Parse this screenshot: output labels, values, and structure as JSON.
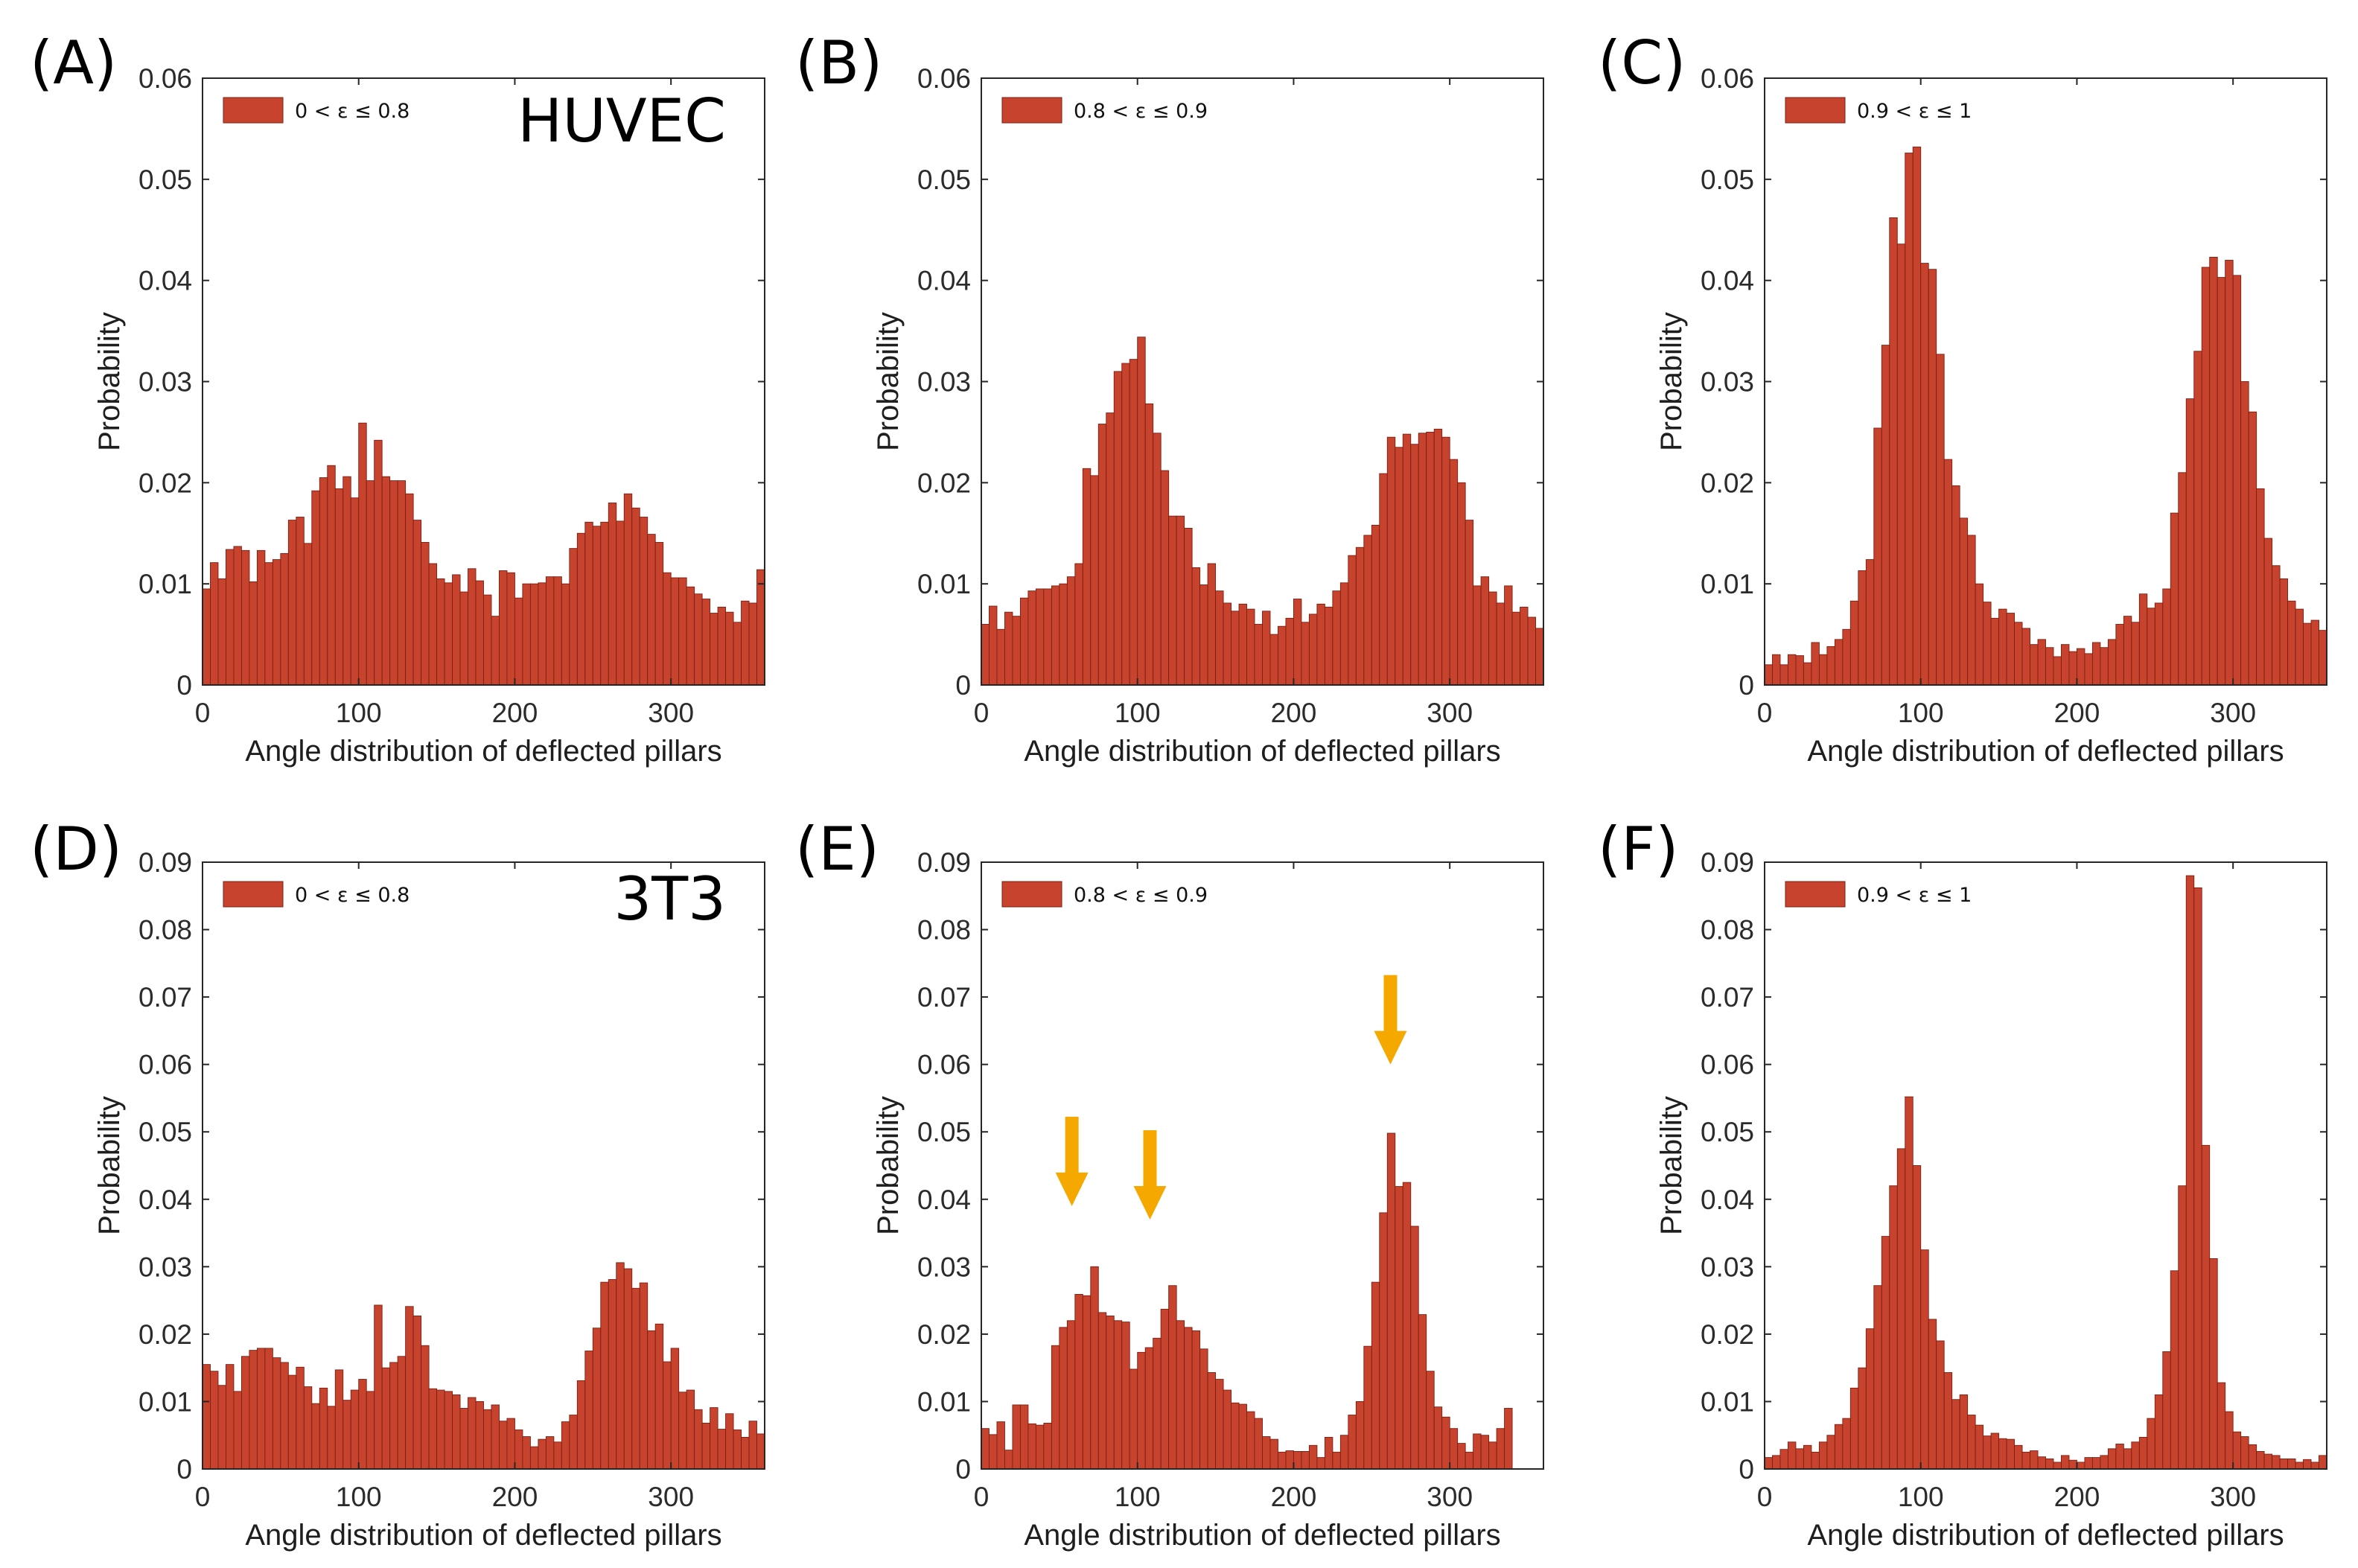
{
  "figure": {
    "bar_color": "#c8432e",
    "bar_edge_color": "#7a1f12",
    "arrow_color": "#f5a800",
    "axis_color": "#262626"
  },
  "chart_data": [
    {
      "panel": "(A)",
      "cell_label": "HUVEC",
      "legend": "0 < ε ≤ 0.8",
      "type": "bar",
      "bin_width_deg": 5,
      "xlabel": "Angle distribution of deflected pillars",
      "ylabel": "Probability",
      "xlim": [
        0,
        360
      ],
      "xticks": [
        0,
        100,
        200,
        300
      ],
      "ylim": [
        0,
        0.06
      ],
      "yticks": [
        0,
        0.01,
        0.02,
        0.03,
        0.04,
        0.05,
        0.06
      ],
      "ytick_labels": [
        "0",
        "0.01",
        "0.02",
        "0.03",
        "0.04",
        "0.05",
        "0.06"
      ],
      "values": [
        0.0095,
        0.0121,
        0.0105,
        0.0134,
        0.0137,
        0.0133,
        0.0102,
        0.0133,
        0.0121,
        0.0124,
        0.013,
        0.0163,
        0.0166,
        0.014,
        0.0192,
        0.0205,
        0.0217,
        0.0194,
        0.0206,
        0.0185,
        0.0259,
        0.0202,
        0.0242,
        0.0206,
        0.0202,
        0.0202,
        0.0189,
        0.0163,
        0.0141,
        0.012,
        0.0105,
        0.0101,
        0.0109,
        0.0092,
        0.0115,
        0.0103,
        0.0089,
        0.0068,
        0.0113,
        0.0111,
        0.0086,
        0.01,
        0.01,
        0.0101,
        0.0107,
        0.0107,
        0.01,
        0.0135,
        0.015,
        0.0161,
        0.0157,
        0.0161,
        0.018,
        0.0162,
        0.0189,
        0.0175,
        0.0166,
        0.0149,
        0.0141,
        0.0111,
        0.0106,
        0.0106,
        0.0097,
        0.009,
        0.0085,
        0.0071,
        0.0077,
        0.0072,
        0.0062,
        0.0083,
        0.0081,
        0.0114
      ]
    },
    {
      "panel": "(B)",
      "cell_label": "",
      "legend": "0.8 < ε ≤ 0.9",
      "type": "bar",
      "bin_width_deg": 5,
      "xlabel": "Angle distribution of deflected pillars",
      "ylabel": "Probability",
      "xlim": [
        0,
        360
      ],
      "xticks": [
        0,
        100,
        200,
        300
      ],
      "ylim": [
        0,
        0.06
      ],
      "yticks": [
        0,
        0.01,
        0.02,
        0.03,
        0.04,
        0.05,
        0.06
      ],
      "ytick_labels": [
        "0",
        "0.01",
        "0.02",
        "0.03",
        "0.04",
        "0.05",
        "0.06"
      ],
      "values": [
        0.006,
        0.0078,
        0.0055,
        0.0072,
        0.0068,
        0.0086,
        0.0093,
        0.0095,
        0.0095,
        0.0098,
        0.01,
        0.0107,
        0.012,
        0.0214,
        0.0207,
        0.0258,
        0.0269,
        0.031,
        0.0318,
        0.0322,
        0.0344,
        0.0278,
        0.0249,
        0.0212,
        0.0167,
        0.0167,
        0.0155,
        0.0116,
        0.0099,
        0.012,
        0.0093,
        0.0081,
        0.0073,
        0.008,
        0.0075,
        0.006,
        0.0073,
        0.005,
        0.0058,
        0.0066,
        0.0085,
        0.0062,
        0.007,
        0.008,
        0.0077,
        0.0093,
        0.0101,
        0.0128,
        0.0136,
        0.0148,
        0.0158,
        0.0209,
        0.0245,
        0.0235,
        0.0248,
        0.0238,
        0.0249,
        0.025,
        0.0253,
        0.0245,
        0.0223,
        0.02,
        0.0163,
        0.0098,
        0.0107,
        0.0092,
        0.0081,
        0.0098,
        0.0072,
        0.0077,
        0.0067,
        0.0056
      ]
    },
    {
      "panel": "(C)",
      "cell_label": "",
      "legend": "0.9 < ε ≤ 1",
      "type": "bar",
      "bin_width_deg": 5,
      "xlabel": "Angle distribution of deflected pillars",
      "ylabel": "Probability",
      "xlim": [
        0,
        360
      ],
      "xticks": [
        0,
        100,
        200,
        300
      ],
      "ylim": [
        0,
        0.06
      ],
      "yticks": [
        0,
        0.01,
        0.02,
        0.03,
        0.04,
        0.05,
        0.06
      ],
      "ytick_labels": [
        "0",
        "0.01",
        "0.02",
        "0.03",
        "0.04",
        "0.05",
        "0.06"
      ],
      "values": [
        0.002,
        0.003,
        0.002,
        0.003,
        0.0029,
        0.0022,
        0.0042,
        0.003,
        0.0038,
        0.0045,
        0.0055,
        0.0083,
        0.0113,
        0.0124,
        0.0254,
        0.0336,
        0.0462,
        0.0436,
        0.0526,
        0.0532,
        0.0417,
        0.0411,
        0.0327,
        0.0223,
        0.0197,
        0.0165,
        0.0148,
        0.01,
        0.0082,
        0.0066,
        0.0075,
        0.0071,
        0.0062,
        0.0056,
        0.004,
        0.0045,
        0.0037,
        0.0028,
        0.004,
        0.0033,
        0.0036,
        0.0031,
        0.0042,
        0.0037,
        0.0045,
        0.006,
        0.0068,
        0.0062,
        0.009,
        0.0076,
        0.0081,
        0.0095,
        0.017,
        0.021,
        0.0283,
        0.033,
        0.0413,
        0.0423,
        0.0403,
        0.042,
        0.0405,
        0.03,
        0.027,
        0.0194,
        0.0145,
        0.0118,
        0.0105,
        0.0083,
        0.0075,
        0.0061,
        0.0064,
        0.0054,
        0.0065,
        0.0045,
        0.0053,
        0.004,
        0.0031
      ]
    },
    {
      "panel": "(D)",
      "cell_label": "3T3",
      "legend": "0 < ε ≤ 0.8",
      "type": "bar",
      "bin_width_deg": 5,
      "xlabel": "Angle distribution of deflected pillars",
      "ylabel": "Probability",
      "xlim": [
        0,
        360
      ],
      "xticks": [
        0,
        100,
        200,
        300
      ],
      "ylim": [
        0,
        0.09
      ],
      "yticks": [
        0,
        0.01,
        0.02,
        0.03,
        0.04,
        0.05,
        0.06,
        0.07,
        0.08,
        0.09
      ],
      "ytick_labels": [
        "0",
        "0.01",
        "0.02",
        "0.03",
        "0.04",
        "0.05",
        "0.06",
        "0.07",
        "0.08",
        "0.09"
      ],
      "values": [
        0.0155,
        0.0145,
        0.0124,
        0.0155,
        0.0115,
        0.0167,
        0.0176,
        0.0179,
        0.0179,
        0.0165,
        0.0158,
        0.0139,
        0.0151,
        0.0122,
        0.0097,
        0.012,
        0.0093,
        0.0147,
        0.0102,
        0.0117,
        0.0133,
        0.0115,
        0.0243,
        0.015,
        0.0158,
        0.0167,
        0.0241,
        0.0227,
        0.0183,
        0.0119,
        0.0117,
        0.0115,
        0.011,
        0.009,
        0.0106,
        0.01,
        0.0088,
        0.0095,
        0.0071,
        0.0075,
        0.0058,
        0.0048,
        0.0033,
        0.0044,
        0.0048,
        0.004,
        0.007,
        0.008,
        0.0131,
        0.0175,
        0.0209,
        0.0277,
        0.0281,
        0.0306,
        0.0297,
        0.0268,
        0.0276,
        0.0205,
        0.0215,
        0.0159,
        0.0179,
        0.0114,
        0.0117,
        0.0088,
        0.0068,
        0.0091,
        0.0059,
        0.0082,
        0.0058,
        0.0047,
        0.0071,
        0.0052,
        0.0069,
        0.0062
      ]
    },
    {
      "panel": "(E)",
      "cell_label": "",
      "legend": "0.8 < ε ≤ 0.9",
      "type": "bar",
      "bin_width_deg": 5,
      "xlabel": "Angle distribution of deflected pillars",
      "ylabel": "Probability",
      "xlim": [
        0,
        360
      ],
      "xticks": [
        0,
        100,
        200,
        300
      ],
      "ylim": [
        0,
        0.09
      ],
      "yticks": [
        0,
        0.01,
        0.02,
        0.03,
        0.04,
        0.05,
        0.06,
        0.07,
        0.08,
        0.09
      ],
      "ytick_labels": [
        "0",
        "0.01",
        "0.02",
        "0.03",
        "0.04",
        "0.05",
        "0.06",
        "0.07",
        "0.08",
        "0.09"
      ],
      "values": [
        0.006,
        0.0051,
        0.007,
        0.0028,
        0.0095,
        0.0095,
        0.0067,
        0.0065,
        0.0068,
        0.0183,
        0.021,
        0.022,
        0.0259,
        0.0257,
        0.03,
        0.0232,
        0.0227,
        0.022,
        0.0218,
        0.0148,
        0.0173,
        0.018,
        0.0194,
        0.0237,
        0.0272,
        0.022,
        0.021,
        0.0205,
        0.0178,
        0.0143,
        0.0133,
        0.0117,
        0.0098,
        0.0096,
        0.0085,
        0.0075,
        0.0048,
        0.0044,
        0.0025,
        0.0027,
        0.0026,
        0.0026,
        0.0035,
        0.0017,
        0.0047,
        0.0025,
        0.005,
        0.008,
        0.01,
        0.0182,
        0.0277,
        0.038,
        0.0498,
        0.0419,
        0.0425,
        0.036,
        0.0229,
        0.0145,
        0.0092,
        0.0077,
        0.006,
        0.0038,
        0.0025,
        0.0052,
        0.005,
        0.004,
        0.006,
        0.009
      ]
    },
    {
      "panel": "(F)",
      "cell_label": "",
      "legend": "0.9 < ε ≤ 1",
      "type": "bar",
      "bin_width_deg": 5,
      "xlabel": "Angle distribution of deflected pillars",
      "ylabel": "Probability",
      "xlim": [
        0,
        360
      ],
      "xticks": [
        0,
        100,
        200,
        300
      ],
      "ylim": [
        0,
        0.09
      ],
      "yticks": [
        0,
        0.01,
        0.02,
        0.03,
        0.04,
        0.05,
        0.06,
        0.07,
        0.08,
        0.09
      ],
      "ytick_labels": [
        "0",
        "0.01",
        "0.02",
        "0.03",
        "0.04",
        "0.05",
        "0.06",
        "0.07",
        "0.08",
        "0.09"
      ],
      "values": [
        0.0017,
        0.002,
        0.0029,
        0.004,
        0.003,
        0.0035,
        0.0025,
        0.004,
        0.005,
        0.0066,
        0.0075,
        0.012,
        0.015,
        0.0208,
        0.0272,
        0.0345,
        0.042,
        0.0475,
        0.0552,
        0.045,
        0.0325,
        0.0222,
        0.019,
        0.0143,
        0.0103,
        0.011,
        0.008,
        0.0065,
        0.0049,
        0.0053,
        0.0045,
        0.0044,
        0.0035,
        0.0025,
        0.0027,
        0.0018,
        0.0015,
        0.001,
        0.002,
        0.0013,
        0.001,
        0.0017,
        0.0017,
        0.002,
        0.003,
        0.0037,
        0.003,
        0.004,
        0.0047,
        0.0075,
        0.011,
        0.0174,
        0.0294,
        0.042,
        0.088,
        0.0862,
        0.048,
        0.0312,
        0.0128,
        0.0085,
        0.0055,
        0.0048,
        0.0036,
        0.0026,
        0.0022,
        0.002,
        0.0015,
        0.0015,
        0.001,
        0.0014,
        0.001,
        0.002
      ]
    }
  ],
  "annotations": {
    "arrows_panel_E": [
      {
        "description": "down-arrow",
        "x_deg": 58,
        "y_tip": 0.039
      },
      {
        "description": "down-arrow",
        "x_deg": 108,
        "y_tip": 0.037
      },
      {
        "description": "down-arrow",
        "x_deg": 262,
        "y_tip": 0.06
      }
    ]
  }
}
